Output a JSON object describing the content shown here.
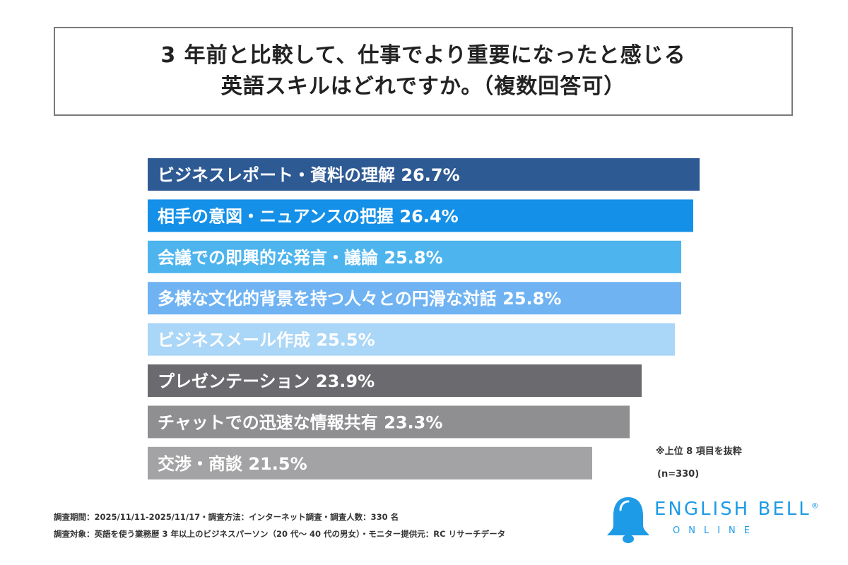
{
  "title": {
    "line1": "3 年前と比較して、仕事でより重要になったと感じる",
    "line2": "英語スキルはどれですか。（複数回答可）"
  },
  "chart_data": {
    "type": "bar",
    "orientation": "horizontal",
    "categories": [
      "ビジネスレポート・資料の理解",
      "相手の意図・ニュアンスの把握",
      "会議での即興的な発言・議論",
      "多様な文化的背景を持つ人々との円滑な対話",
      "ビジネスメール作成",
      "プレゼンテーション",
      "チャットでの迅速な情報共有",
      "交渉・商談"
    ],
    "values": [
      26.7,
      26.4,
      25.8,
      25.8,
      25.5,
      23.9,
      23.3,
      21.5
    ],
    "value_labels": [
      "26.7%",
      "26.4%",
      "25.8%",
      "25.8%",
      "25.5%",
      "23.9%",
      "23.3%",
      "21.5%"
    ],
    "colors": [
      "#2e5a94",
      "#1590e8",
      "#4db4ee",
      "#6fb3f3",
      "#aad6f7",
      "#6b6b6f",
      "#8f8f92",
      "#a3a3a5"
    ],
    "xlim": [
      0,
      26.7
    ],
    "grid": false,
    "legend": "none"
  },
  "notes": {
    "excerpt": "※上位 8 項目を抜粋",
    "sample": "(n=330)"
  },
  "footer": {
    "line1": "調査期間：2025/11/11-2025/11/17・調査方法：インターネット調査・調査人数：330 名",
    "line2": "調査対象：英語を使う業務歴 3 年以上のビジネスパーソン（20 代～ 40 代の男女）・モニター提供元：RC リサーチデータ"
  },
  "logo": {
    "name": "ENGLISH BELL",
    "reg": "®",
    "sub": "ONLINE",
    "icon": "bell-icon",
    "color": "#1e9be6"
  }
}
